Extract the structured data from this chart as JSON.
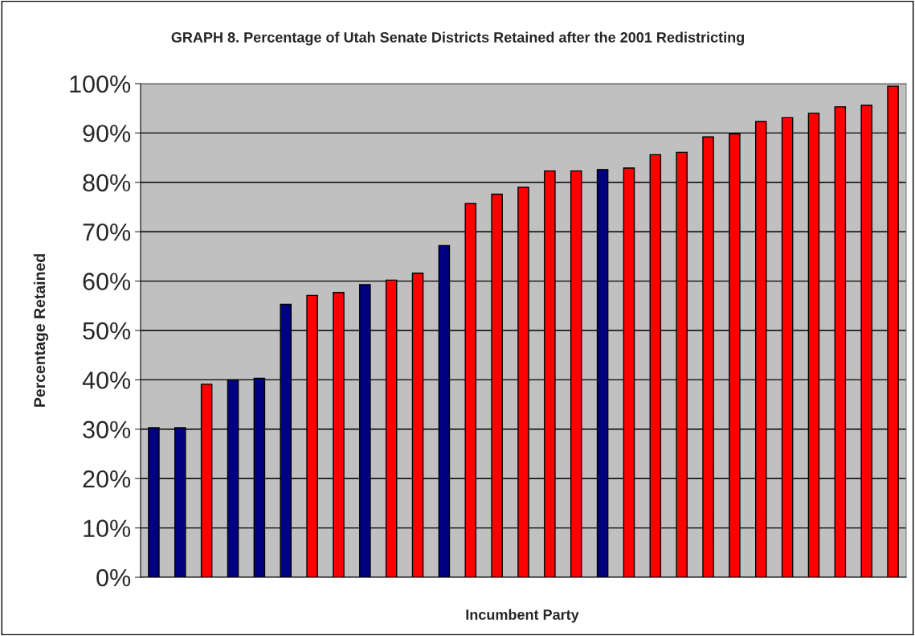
{
  "chart_data": {
    "type": "bar",
    "title": "GRAPH 8. Percentage of Utah Senate Districts Retained after the 2001 Redistricting",
    "xlabel": "Incumbent Party",
    "ylabel": "Percentage Retained",
    "categories": [
      null,
      null,
      null,
      null,
      null,
      null,
      null,
      null,
      null,
      null,
      null,
      null,
      null,
      null,
      null,
      null,
      null,
      null,
      null,
      null,
      null,
      null,
      null,
      null,
      null,
      null,
      null,
      null,
      null
    ],
    "values": [
      30.3,
      30.3,
      39.1,
      40,
      40.3,
      55.3,
      57.1,
      57.7,
      59.3,
      60.2,
      61.6,
      67.2,
      75.7,
      77.6,
      79,
      82.3,
      82.3,
      82.6,
      82.9,
      85.6,
      86.1,
      89.2,
      89.8,
      92.3,
      93.1,
      94,
      95.3,
      95.6,
      99.5
    ],
    "colors": [
      "#000080",
      "#000080",
      "#ff0000",
      "#000080",
      "#000080",
      "#000080",
      "#ff0000",
      "#ff0000",
      "#000080",
      "#ff0000",
      "#ff0000",
      "#000080",
      "#ff0000",
      "#ff0000",
      "#ff0000",
      "#ff0000",
      "#ff0000",
      "#000080",
      "#ff0000",
      "#ff0000",
      "#ff0000",
      "#ff0000",
      "#ff0000",
      "#ff0000",
      "#ff0000",
      "#ff0000",
      "#ff0000",
      "#ff0000",
      "#ff0000"
    ],
    "ylim": [
      0,
      100
    ],
    "yticks": [
      {
        "value": 0,
        "label": "0%"
      },
      {
        "value": 10,
        "label": "10%"
      },
      {
        "value": 20,
        "label": "20%"
      },
      {
        "value": 30,
        "label": "30%"
      },
      {
        "value": 40,
        "label": "40%"
      },
      {
        "value": 50,
        "label": "50%"
      },
      {
        "value": 60,
        "label": "60%"
      },
      {
        "value": 70,
        "label": "70%"
      },
      {
        "value": 80,
        "label": "80%"
      },
      {
        "value": 90,
        "label": "90%"
      },
      {
        "value": 100,
        "label": "100%"
      }
    ],
    "grid": "y"
  }
}
